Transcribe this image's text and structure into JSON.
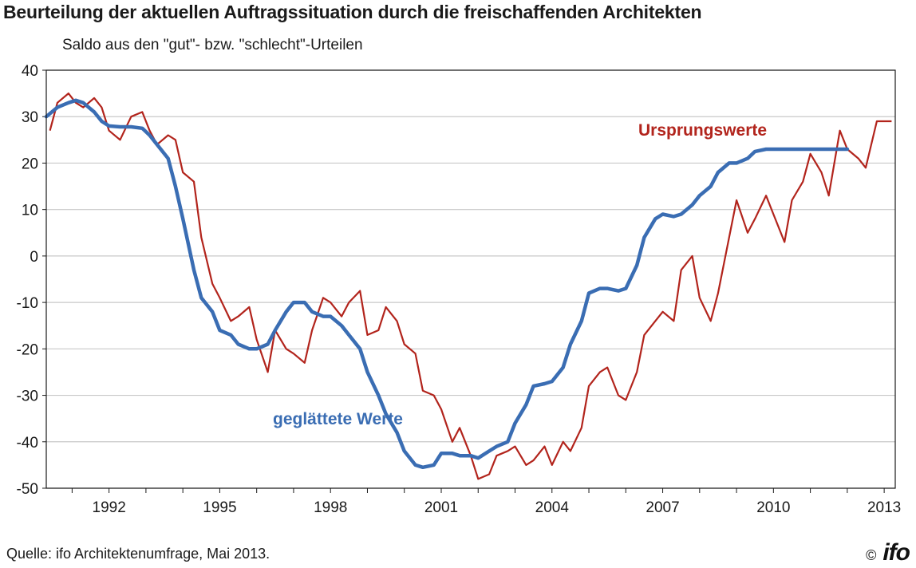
{
  "title": "Beurteilung der aktuellen Auftragssituation durch die freischaffenden Architekten",
  "subtitle": "Saldo aus den \"gut\"- bzw. \"schlecht\"-Urteilen",
  "source": "Quelle: ifo Architektenumfrage, Mai 2013.",
  "copyright": "©",
  "logo_text": "ifo",
  "colors": {
    "original": "#b2241c",
    "smoothed": "#3a6db3",
    "grid": "#c8c8c8",
    "axis": "#1a1a1a"
  },
  "chart_data": {
    "type": "line",
    "title": "Beurteilung der aktuellen Auftragssituation durch die freischaffenden Architekten",
    "subtitle": "Saldo aus den \"gut\"- bzw. \"schlecht\"-Urteilen",
    "xlim": [
      1990.3,
      2013.3
    ],
    "ylim": [
      -50,
      40
    ],
    "y_ticks": [
      40,
      30,
      20,
      10,
      0,
      -10,
      -20,
      -30,
      -40,
      -50
    ],
    "y_tick_labels": [
      "40",
      "30",
      "20",
      "10",
      "0",
      "-10",
      "-20",
      "-30",
      "-40",
      "-50"
    ],
    "x_ticks": [
      1992,
      1995,
      1998,
      2001,
      2004,
      2007,
      2010,
      2013
    ],
    "x_tick_labels": [
      "1992",
      "1995",
      "1998",
      "2001",
      "2004",
      "2007",
      "2010",
      "2013"
    ],
    "grid": "horizontal",
    "series": [
      {
        "name": "Ursprungswerte",
        "color": "#b2241c",
        "x": [
          1990.4,
          1990.6,
          1990.9,
          1991.1,
          1991.3,
          1991.6,
          1991.8,
          1992.0,
          1992.3,
          1992.6,
          1992.9,
          1993.1,
          1993.3,
          1993.6,
          1993.8,
          1994.0,
          1994.3,
          1994.5,
          1994.8,
          1995.0,
          1995.3,
          1995.5,
          1995.8,
          1996.0,
          1996.3,
          1996.5,
          1996.8,
          1997.0,
          1997.3,
          1997.5,
          1997.8,
          1998.0,
          1998.3,
          1998.5,
          1998.8,
          1999.0,
          1999.3,
          1999.5,
          1999.8,
          2000.0,
          2000.3,
          2000.5,
          2000.8,
          2001.0,
          2001.3,
          2001.5,
          2001.8,
          2002.0,
          2002.3,
          2002.5,
          2002.8,
          2003.0,
          2003.3,
          2003.5,
          2003.8,
          2004.0,
          2004.3,
          2004.5,
          2004.8,
          2005.0,
          2005.3,
          2005.5,
          2005.8,
          2006.0,
          2006.3,
          2006.5,
          2006.8,
          2007.0,
          2007.3,
          2007.5,
          2007.8,
          2008.0,
          2008.3,
          2008.5,
          2008.8,
          2009.0,
          2009.3,
          2009.5,
          2009.8,
          2010.0,
          2010.3,
          2010.5,
          2010.8,
          2011.0,
          2011.3,
          2011.5,
          2011.8,
          2012.0,
          2012.3,
          2012.5,
          2012.8,
          2013.0,
          2013.2
        ],
        "values": [
          27,
          33,
          35,
          33,
          32,
          34,
          32,
          27,
          25,
          30,
          31,
          27,
          24,
          26,
          25,
          18,
          16,
          4,
          -6,
          -9,
          -14,
          -13,
          -11,
          -18,
          -25,
          -16,
          -20,
          -21,
          -23,
          -16,
          -9,
          -10,
          -13,
          -10,
          -7.5,
          -17,
          -16,
          -11,
          -14,
          -19,
          -21,
          -29,
          -30,
          -33,
          -40,
          -37,
          -43,
          -48,
          -47,
          -43,
          -42,
          -41,
          -45,
          -44,
          -41,
          -45,
          -40,
          -42,
          -37,
          -28,
          -25,
          -24,
          -30,
          -31,
          -25,
          -17,
          -14,
          -12,
          -14,
          -3,
          0,
          -9,
          -14,
          -8,
          4,
          12,
          5,
          8,
          13,
          9,
          3,
          12,
          16,
          22,
          18,
          13,
          27,
          23,
          21,
          19,
          29,
          29,
          29
        ],
        "note_label": "Ursprungswerte"
      },
      {
        "name": "geglättete Werte",
        "color": "#3a6db3",
        "x": [
          1990.3,
          1990.6,
          1990.9,
          1991.1,
          1991.3,
          1991.6,
          1991.8,
          1992.0,
          1992.3,
          1992.6,
          1992.9,
          1993.1,
          1993.3,
          1993.6,
          1993.8,
          1994.0,
          1994.3,
          1994.5,
          1994.8,
          1995.0,
          1995.3,
          1995.5,
          1995.8,
          1996.0,
          1996.3,
          1996.5,
          1996.8,
          1997.0,
          1997.3,
          1997.5,
          1997.8,
          1998.0,
          1998.3,
          1998.5,
          1998.8,
          1999.0,
          1999.3,
          1999.5,
          1999.8,
          2000.0,
          2000.3,
          2000.5,
          2000.8,
          2001.0,
          2001.3,
          2001.5,
          2001.8,
          2002.0,
          2002.3,
          2002.5,
          2002.8,
          2003.0,
          2003.3,
          2003.5,
          2003.8,
          2004.0,
          2004.3,
          2004.5,
          2004.8,
          2005.0,
          2005.3,
          2005.5,
          2005.8,
          2006.0,
          2006.3,
          2006.5,
          2006.8,
          2007.0,
          2007.3,
          2007.5,
          2007.8,
          2008.0,
          2008.3,
          2008.5,
          2008.8,
          2009.0,
          2009.3,
          2009.5,
          2009.8,
          2010.0,
          2010.3,
          2010.5,
          2010.8,
          2011.0,
          2011.3,
          2011.5,
          2011.8,
          2012.0
        ],
        "values": [
          30,
          32,
          33,
          33.5,
          33,
          31,
          29,
          28,
          27.8,
          27.8,
          27.5,
          26,
          24,
          21,
          15,
          8,
          -3,
          -9,
          -12,
          -16,
          -17,
          -19,
          -20,
          -20,
          -19,
          -16,
          -12,
          -10,
          -10,
          -12,
          -13,
          -13,
          -15,
          -17,
          -20,
          -25,
          -30,
          -34,
          -38,
          -42,
          -45,
          -45.5,
          -45,
          -42.5,
          -42.5,
          -43,
          -43,
          -43.5,
          -42,
          -41,
          -40,
          -36,
          -32,
          -28,
          -27.5,
          -27,
          -24,
          -19,
          -14,
          -8,
          -7,
          -7,
          -7.5,
          -7,
          -2,
          4,
          8,
          9,
          8.5,
          9,
          11,
          13,
          15,
          18,
          20,
          20,
          21,
          22.5,
          23,
          23,
          23,
          23,
          23,
          23,
          23,
          23,
          23,
          23
        ],
        "note_label": "geglättete Werte"
      }
    ]
  }
}
